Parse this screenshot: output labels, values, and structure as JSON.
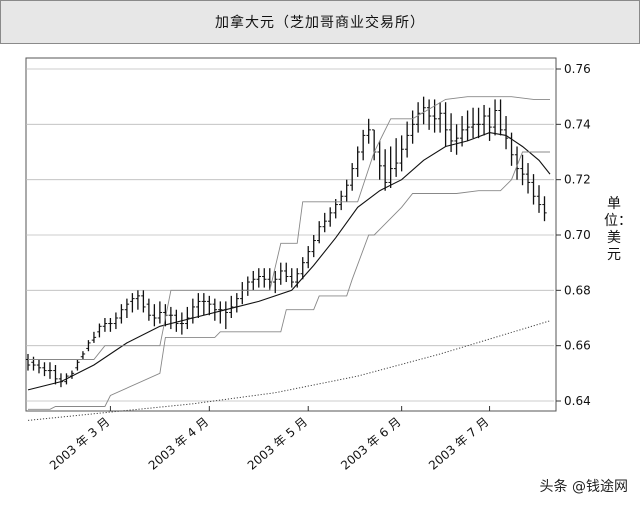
{
  "watermark": "头条 @钱途网",
  "chart_data": {
    "type": "line",
    "title": "加拿大元（芝加哥商业交易所）",
    "ylabel": "单位：美元",
    "xlabel": "",
    "ylim": [
      0.635,
      0.765
    ],
    "yticks": [
      0.64,
      0.66,
      0.68,
      0.7,
      0.72,
      0.74,
      0.76
    ],
    "ytick_labels": [
      "0.64",
      "0.66",
      "0.68",
      "0.70",
      "0.72",
      "0.74",
      "0.76"
    ],
    "reference_levels": [
      0.76,
      0.74,
      0.72,
      0.7,
      0.68,
      0.66,
      0.64
    ],
    "x_count": 95,
    "xticks": [
      {
        "index": 15,
        "label": "2003 年 3 月"
      },
      {
        "index": 33,
        "label": "2003 年 4 月"
      },
      {
        "index": 51,
        "label": "2003 年 5 月"
      },
      {
        "index": 68,
        "label": "2003 年 6 月"
      },
      {
        "index": 84,
        "label": "2003 年 7 月"
      }
    ],
    "grid": false,
    "legend": "none",
    "series": [
      {
        "type": "ohlc",
        "color": "#111111",
        "width": 1.3,
        "high": [
          0.657,
          0.656,
          0.655,
          0.654,
          0.654,
          0.653,
          0.65,
          0.65,
          0.651,
          0.655,
          0.658,
          0.662,
          0.665,
          0.668,
          0.67,
          0.67,
          0.672,
          0.675,
          0.677,
          0.679,
          0.68,
          0.68,
          0.677,
          0.675,
          0.676,
          0.675,
          0.674,
          0.673,
          0.672,
          0.674,
          0.677,
          0.679,
          0.679,
          0.678,
          0.677,
          0.676,
          0.676,
          0.678,
          0.679,
          0.683,
          0.685,
          0.687,
          0.688,
          0.688,
          0.688,
          0.687,
          0.69,
          0.69,
          0.688,
          0.688,
          0.692,
          0.696,
          0.7,
          0.705,
          0.708,
          0.71,
          0.713,
          0.716,
          0.72,
          0.726,
          0.732,
          0.738,
          0.742,
          0.738,
          0.734,
          0.731,
          0.732,
          0.735,
          0.736,
          0.741,
          0.745,
          0.748,
          0.75,
          0.749,
          0.749,
          0.748,
          0.748,
          0.744,
          0.74,
          0.743,
          0.745,
          0.746,
          0.746,
          0.747,
          0.746,
          0.749,
          0.749,
          0.743,
          0.737,
          0.732,
          0.729,
          0.726,
          0.722,
          0.718,
          0.714
        ],
        "low": [
          0.651,
          0.651,
          0.65,
          0.649,
          0.648,
          0.646,
          0.645,
          0.646,
          0.648,
          0.651,
          0.655,
          0.658,
          0.661,
          0.663,
          0.665,
          0.665,
          0.666,
          0.668,
          0.67,
          0.672,
          0.673,
          0.672,
          0.669,
          0.667,
          0.668,
          0.667,
          0.666,
          0.665,
          0.664,
          0.666,
          0.668,
          0.67,
          0.671,
          0.671,
          0.669,
          0.668,
          0.666,
          0.67,
          0.672,
          0.675,
          0.678,
          0.68,
          0.681,
          0.681,
          0.68,
          0.679,
          0.682,
          0.683,
          0.681,
          0.681,
          0.684,
          0.688,
          0.692,
          0.697,
          0.701,
          0.703,
          0.706,
          0.709,
          0.712,
          0.716,
          0.721,
          0.727,
          0.733,
          0.727,
          0.72,
          0.716,
          0.717,
          0.721,
          0.723,
          0.728,
          0.733,
          0.737,
          0.74,
          0.738,
          0.737,
          0.737,
          0.732,
          0.73,
          0.729,
          0.732,
          0.734,
          0.735,
          0.735,
          0.736,
          0.734,
          0.736,
          0.736,
          0.731,
          0.725,
          0.72,
          0.718,
          0.715,
          0.711,
          0.708,
          0.705
        ],
        "open": [
          0.655,
          0.654,
          0.653,
          0.652,
          0.651,
          0.651,
          0.648,
          0.647,
          0.649,
          0.652,
          0.656,
          0.659,
          0.662,
          0.665,
          0.667,
          0.668,
          0.668,
          0.67,
          0.673,
          0.676,
          0.677,
          0.678,
          0.675,
          0.671,
          0.67,
          0.672,
          0.671,
          0.671,
          0.668,
          0.668,
          0.67,
          0.674,
          0.676,
          0.676,
          0.675,
          0.673,
          0.673,
          0.672,
          0.674,
          0.677,
          0.68,
          0.683,
          0.684,
          0.685,
          0.684,
          0.683,
          0.684,
          0.687,
          0.685,
          0.683,
          0.686,
          0.69,
          0.694,
          0.698,
          0.703,
          0.705,
          0.708,
          0.711,
          0.714,
          0.718,
          0.724,
          0.73,
          0.736,
          0.738,
          0.73,
          0.725,
          0.719,
          0.724,
          0.726,
          0.731,
          0.736,
          0.74,
          0.744,
          0.746,
          0.743,
          0.742,
          0.744,
          0.738,
          0.734,
          0.735,
          0.738,
          0.739,
          0.74,
          0.74,
          0.743,
          0.739,
          0.745,
          0.738,
          0.735,
          0.729,
          0.724,
          0.722,
          0.719,
          0.714,
          0.711
        ],
        "close": [
          0.653,
          0.653,
          0.652,
          0.651,
          0.651,
          0.648,
          0.647,
          0.649,
          0.65,
          0.654,
          0.657,
          0.661,
          0.663,
          0.667,
          0.668,
          0.668,
          0.67,
          0.673,
          0.675,
          0.677,
          0.678,
          0.674,
          0.671,
          0.67,
          0.672,
          0.671,
          0.671,
          0.668,
          0.668,
          0.67,
          0.674,
          0.676,
          0.676,
          0.675,
          0.673,
          0.673,
          0.672,
          0.674,
          0.677,
          0.68,
          0.683,
          0.684,
          0.685,
          0.684,
          0.683,
          0.684,
          0.687,
          0.685,
          0.683,
          0.686,
          0.69,
          0.694,
          0.698,
          0.703,
          0.705,
          0.708,
          0.711,
          0.714,
          0.718,
          0.724,
          0.73,
          0.736,
          0.738,
          0.73,
          0.725,
          0.719,
          0.724,
          0.726,
          0.731,
          0.736,
          0.74,
          0.744,
          0.746,
          0.743,
          0.742,
          0.744,
          0.738,
          0.734,
          0.735,
          0.738,
          0.739,
          0.74,
          0.74,
          0.743,
          0.739,
          0.745,
          0.738,
          0.735,
          0.729,
          0.724,
          0.722,
          0.719,
          0.714,
          0.711,
          0.708
        ]
      },
      {
        "type": "line",
        "color": "#111111",
        "width": 1.1,
        "x": [
          0,
          6,
          12,
          18,
          24,
          30,
          36,
          42,
          48,
          52,
          56,
          60,
          64,
          68,
          72,
          76,
          80,
          84,
          87,
          90,
          93,
          95
        ],
        "y": [
          0.644,
          0.647,
          0.653,
          0.661,
          0.667,
          0.67,
          0.673,
          0.676,
          0.68,
          0.689,
          0.699,
          0.71,
          0.716,
          0.72,
          0.727,
          0.732,
          0.734,
          0.737,
          0.736,
          0.732,
          0.727,
          0.722
        ]
      },
      {
        "type": "line",
        "color": "#888888",
        "width": 0.9,
        "x": [
          0,
          12,
          14,
          24,
          26,
          44,
          46,
          49,
          50,
          60,
          63,
          66,
          70,
          76,
          80,
          84,
          88,
          92,
          95
        ],
        "y": [
          0.655,
          0.655,
          0.66,
          0.66,
          0.68,
          0.68,
          0.697,
          0.697,
          0.712,
          0.712,
          0.73,
          0.742,
          0.742,
          0.749,
          0.75,
          0.75,
          0.75,
          0.749,
          0.749
        ]
      },
      {
        "type": "line",
        "color": "#888888",
        "width": 0.9,
        "x": [
          0,
          4,
          5,
          14,
          15,
          24,
          25,
          34,
          35,
          46,
          47,
          52,
          53,
          58,
          59,
          62,
          63,
          68,
          70,
          78,
          82,
          86,
          88,
          90,
          95
        ],
        "y": [
          0.637,
          0.637,
          0.638,
          0.638,
          0.642,
          0.65,
          0.663,
          0.663,
          0.665,
          0.665,
          0.673,
          0.673,
          0.678,
          0.678,
          0.684,
          0.7,
          0.7,
          0.71,
          0.715,
          0.715,
          0.716,
          0.716,
          0.72,
          0.73,
          0.73
        ]
      },
      {
        "type": "line",
        "color": "#444444",
        "width": 1.0,
        "dash": "1.2,1.8",
        "x": [
          0,
          15,
          30,
          45,
          60,
          75,
          95
        ],
        "y": [
          0.633,
          0.636,
          0.639,
          0.643,
          0.649,
          0.657,
          0.669
        ]
      }
    ]
  }
}
